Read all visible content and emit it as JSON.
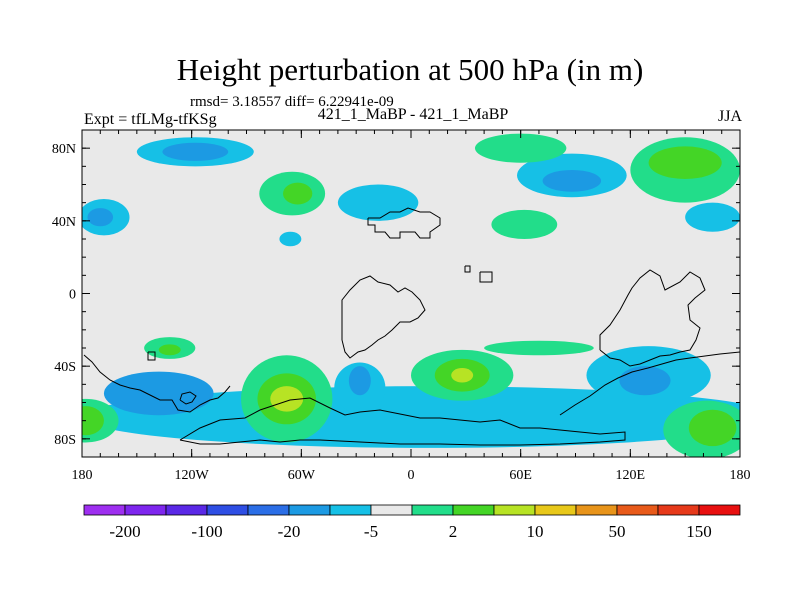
{
  "chart_data": {
    "type": "heatmap",
    "title": "Height perturbation at 500 hPa (in m)",
    "stats_line": "rmsd= 3.18557 diff= 6.22941e-09",
    "left_string": "Expt = tfLMg-tfKSg",
    "center_string": "421_1_MaBP - 421_1_MaBP",
    "right_string": "JJA",
    "xlabel": "",
    "ylabel": "",
    "x_range": [
      -180,
      180
    ],
    "y_range": [
      -90,
      90
    ],
    "x_ticks": [
      {
        "value": -180,
        "label": "180"
      },
      {
        "value": -120,
        "label": "120W"
      },
      {
        "value": -60,
        "label": "60W"
      },
      {
        "value": 0,
        "label": "0"
      },
      {
        "value": 60,
        "label": "60E"
      },
      {
        "value": 120,
        "label": "120E"
      },
      {
        "value": 180,
        "label": "180"
      }
    ],
    "y_ticks": [
      {
        "value": 80,
        "label": "80N"
      },
      {
        "value": 40,
        "label": "40N"
      },
      {
        "value": 0,
        "label": "0"
      },
      {
        "value": -40,
        "label": "40S"
      },
      {
        "value": -80,
        "label": "80S"
      }
    ],
    "colorbar": {
      "colors": [
        "#9e2ff0",
        "#7e26ee",
        "#5a28e6",
        "#2e4ee4",
        "#2b6ee6",
        "#1c9ae3",
        "#16c0e6",
        "#e9e9e9",
        "#22dd8a",
        "#44d526",
        "#b7e324",
        "#e8c81a",
        "#e8941a",
        "#e85a1a",
        "#e6391a",
        "#e81010"
      ],
      "labels": [
        {
          "after_bin": 1,
          "label": "-200"
        },
        {
          "after_bin": 3,
          "label": "-100"
        },
        {
          "after_bin": 5,
          "label": "-20"
        },
        {
          "after_bin": 7,
          "label": "-5"
        },
        {
          "after_bin": 9,
          "label": "2"
        },
        {
          "after_bin": 11,
          "label": "10"
        },
        {
          "after_bin": 13,
          "label": "50"
        },
        {
          "after_bin": 15,
          "label": "150"
        }
      ]
    },
    "features": [
      {
        "name": "arctic-pacific-trough",
        "level": "lightblue",
        "lon": -118,
        "lat": 78,
        "rlon": 32,
        "rlat": 8
      },
      {
        "name": "arctic-pacific-trough-core",
        "level": "blue",
        "lon": -118,
        "lat": 78,
        "rlon": 18,
        "rlat": 5
      },
      {
        "name": "n-pacific-high",
        "level": "teal",
        "lon": -65,
        "lat": 55,
        "rlon": 18,
        "rlat": 12
      },
      {
        "name": "n-pacific-high-core",
        "level": "green",
        "lon": -62,
        "lat": 55,
        "rlon": 8,
        "rlat": 6
      },
      {
        "name": "n-atlantic-trough",
        "level": "lightblue",
        "lon": -18,
        "lat": 50,
        "rlon": 22,
        "rlat": 10
      },
      {
        "name": "nw-pacific-trough",
        "level": "lightblue",
        "lon": -168,
        "lat": 42,
        "rlon": 14,
        "rlat": 10
      },
      {
        "name": "nw-pacific-trough-core",
        "level": "blue",
        "lon": -170,
        "lat": 42,
        "rlon": 7,
        "rlat": 5
      },
      {
        "name": "subtropical-blob",
        "level": "lightblue",
        "lon": -66,
        "lat": 30,
        "rlon": 6,
        "rlat": 4
      },
      {
        "name": "siberian-trough",
        "level": "lightblue",
        "lon": 88,
        "lat": 65,
        "rlon": 30,
        "rlat": 12
      },
      {
        "name": "siberian-trough-core",
        "level": "blue",
        "lon": 88,
        "lat": 62,
        "rlon": 16,
        "rlat": 6
      },
      {
        "name": "arctic-atlantic-high",
        "level": "teal",
        "lon": 60,
        "lat": 80,
        "rlon": 25,
        "rlat": 8
      },
      {
        "name": "central-asia-high",
        "level": "teal",
        "lon": 62,
        "lat": 38,
        "rlon": 18,
        "rlat": 8
      },
      {
        "name": "arctic-siberian-high",
        "level": "teal",
        "lon": 150,
        "lat": 68,
        "rlon": 30,
        "rlat": 18
      },
      {
        "name": "arctic-siberian-high-core",
        "level": "green",
        "lon": 150,
        "lat": 72,
        "rlon": 20,
        "rlat": 9
      },
      {
        "name": "east-asia-trough",
        "level": "lightblue",
        "lon": 165,
        "lat": 42,
        "rlon": 15,
        "rlat": 8
      },
      {
        "name": "s-ocean-band",
        "level": "lightblue",
        "lon": 10,
        "lat": -68,
        "rlon": 190,
        "rlat": 17
      },
      {
        "name": "s-pacific-trough-core",
        "level": "blue",
        "lon": -138,
        "lat": -55,
        "rlon": 30,
        "rlat": 12
      },
      {
        "name": "s-pacific-green",
        "level": "teal",
        "lon": -178,
        "lat": -70,
        "rlon": 18,
        "rlat": 12
      },
      {
        "name": "s-pacific-green-core",
        "level": "green",
        "lon": -178,
        "lat": -70,
        "rlon": 10,
        "rlat": 8
      },
      {
        "name": "s-america-ridge",
        "level": "teal",
        "lon": -68,
        "lat": -58,
        "rlon": 25,
        "rlat": 24
      },
      {
        "name": "s-america-ridge-mid",
        "level": "green",
        "lon": -68,
        "lat": -58,
        "rlon": 16,
        "rlat": 14
      },
      {
        "name": "s-america-ridge-core",
        "level": "yellowgreen",
        "lon": -68,
        "lat": -58,
        "rlon": 9,
        "rlat": 7
      },
      {
        "name": "s-atlantic-trough",
        "level": "lightblue",
        "lon": -28,
        "lat": -52,
        "rlon": 14,
        "rlat": 14
      },
      {
        "name": "s-atlantic-trough-core",
        "level": "blue",
        "lon": -28,
        "lat": -48,
        "rlon": 6,
        "rlat": 8
      },
      {
        "name": "africa-ridge",
        "level": "teal",
        "lon": 28,
        "lat": -45,
        "rlon": 28,
        "rlat": 14
      },
      {
        "name": "africa-ridge-mid",
        "level": "green",
        "lon": 28,
        "lat": -45,
        "rlon": 15,
        "rlat": 9
      },
      {
        "name": "africa-ridge-core",
        "level": "yellowgreen",
        "lon": 28,
        "lat": -45,
        "rlon": 6,
        "rlat": 4
      },
      {
        "name": "s-indian-trough",
        "level": "lightblue",
        "lon": 130,
        "lat": -45,
        "rlon": 34,
        "rlat": 16
      },
      {
        "name": "s-indian-trough-core",
        "level": "blue",
        "lon": 128,
        "lat": -48,
        "rlon": 14,
        "rlat": 8
      },
      {
        "name": "se-pacific-ridge",
        "level": "teal",
        "lon": 162,
        "lat": -75,
        "rlon": 24,
        "rlat": 16
      },
      {
        "name": "se-pacific-ridge-core",
        "level": "green",
        "lon": 165,
        "lat": -74,
        "rlon": 13,
        "rlat": 10
      },
      {
        "name": "equatorial-blob-sa",
        "level": "teal",
        "lon": -132,
        "lat": -30,
        "rlon": 14,
        "rlat": 6
      },
      {
        "name": "equatorial-blob-sa-core",
        "level": "green",
        "lon": -132,
        "lat": -31,
        "rlon": 6,
        "rlat": 3
      },
      {
        "name": "s-subtropical-band",
        "level": "teal",
        "lon": 70,
        "lat": -30,
        "rlon": 30,
        "rlat": 4
      }
    ]
  }
}
